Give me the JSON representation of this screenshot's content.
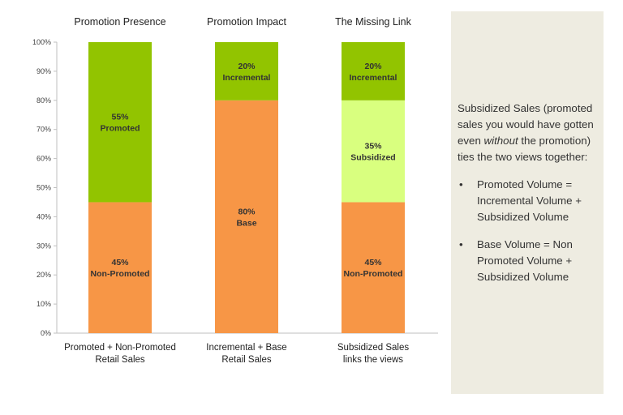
{
  "chart_data": {
    "type": "bar",
    "stacked": true,
    "ylim": [
      0,
      100
    ],
    "yticks": [
      "0%",
      "10%",
      "20%",
      "30%",
      "40%",
      "50%",
      "60%",
      "70%",
      "80%",
      "90%",
      "100%"
    ],
    "bars": [
      {
        "title": "Promotion Presence",
        "category_lines": [
          "Promoted + Non-Promoted",
          "Retail Sales"
        ],
        "segments": [
          {
            "name": "Non-Promoted",
            "value": 45,
            "value_label": "45%",
            "color": "#f79646"
          },
          {
            "name": "Promoted",
            "value": 55,
            "value_label": "55%",
            "color": "#92c400"
          }
        ]
      },
      {
        "title": "Promotion Impact",
        "category_lines": [
          "Incremental + Base",
          "Retail Sales"
        ],
        "segments": [
          {
            "name": "Base",
            "value": 80,
            "value_label": "80%",
            "color": "#f79646"
          },
          {
            "name": "Incremental",
            "value": 20,
            "value_label": "20%",
            "color": "#92c400"
          }
        ]
      },
      {
        "title": "The Missing Link",
        "category_lines": [
          "Subsidized Sales",
          "links the views"
        ],
        "segments": [
          {
            "name": "Non-Promoted",
            "value": 45,
            "value_label": "45%",
            "color": "#f79646"
          },
          {
            "name": "Subsidized",
            "value": 35,
            "value_label": "35%",
            "color": "#d9ff7f"
          },
          {
            "name": "Incremental",
            "value": 20,
            "value_label": "20%",
            "color": "#92c400"
          }
        ]
      }
    ]
  },
  "side_panel": {
    "intro_before": "Subsidized Sales (promoted sales you would have gotten even ",
    "intro_emphasis": "without",
    "intro_after": " the promotion) ties the two views together:",
    "bullet_glyph": "•",
    "bullets": [
      "Promoted Volume = Incremental Volume + Subsidized Volume",
      "Base Volume = Non Promoted Volume + Subsidized Volume"
    ],
    "background": "#eeece1"
  }
}
